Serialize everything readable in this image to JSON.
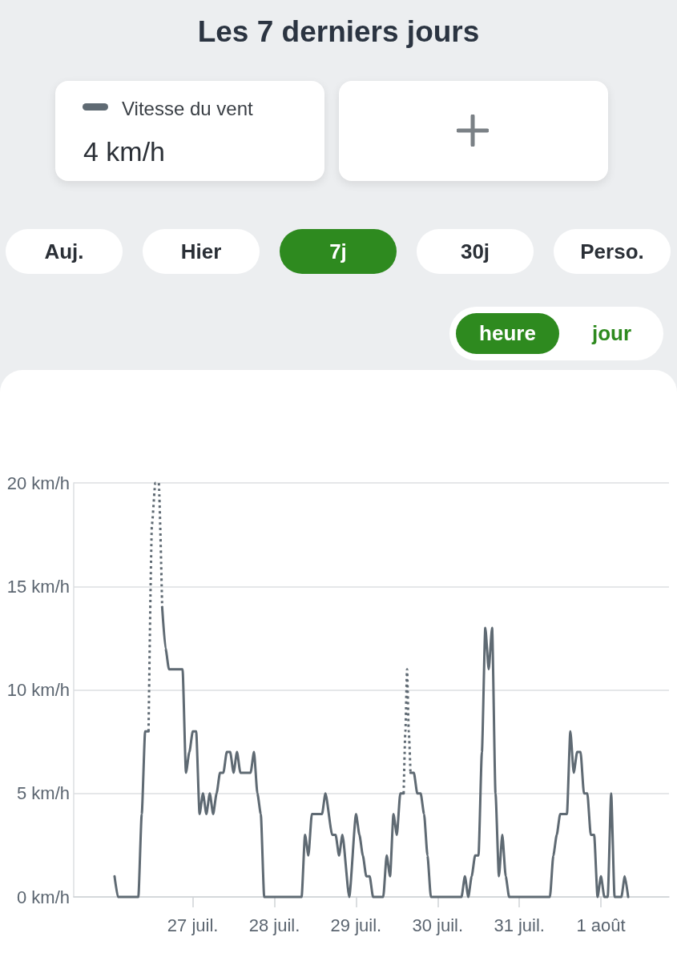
{
  "chart_data": {
    "type": "line",
    "title": "Les 7 derniers jours",
    "annotations": [
      "4 km/h",
      "Auj.",
      "Hier",
      "7j",
      "30j",
      "Perso.",
      "heure",
      "jour"
    ],
    "series": [
      {
        "name": "Vitesse du vent",
        "color": "#5f6a73",
        "x": [
          "--07-26T01:00",
          "--07-26T02:00",
          "--07-26T08:00",
          "--07-26T09:00",
          "--07-26T10:00",
          "--07-26T11:00",
          "--07-26T13:00",
          "--07-26T15:00",
          "--07-26T16:00",
          "--07-26T17:00",
          "--07-26T21:00",
          "--07-26T22:00",
          "--07-26T23:00",
          "--07-27T00:00",
          "--07-27T01:00",
          "--07-27T02:00",
          "--07-27T03:00",
          "--07-27T04:00",
          "--07-27T05:00",
          "--07-27T06:00",
          "--07-27T07:00",
          "--07-27T08:00",
          "--07-27T09:00",
          "--07-27T10:00",
          "--07-27T11:00",
          "--07-27T12:00",
          "--07-27T13:00",
          "--07-27T14:00",
          "--07-27T17:00",
          "--07-27T18:00",
          "--07-27T19:00",
          "--07-27T20:00",
          "--07-27T21:00",
          "--07-28T08:00",
          "--07-28T09:00",
          "--07-28T10:00",
          "--07-28T11:00",
          "--07-28T14:00",
          "--07-28T15:00",
          "--07-28T17:00",
          "--07-28T18:00",
          "--07-28T19:00",
          "--07-28T20:00",
          "--07-28T22:00",
          "--07-29T00:00",
          "--07-29T01:00",
          "--07-29T02:00",
          "--07-29T03:00",
          "--07-29T04:00",
          "--07-29T05:00",
          "--07-29T08:00",
          "--07-29T09:00",
          "--07-29T10:00",
          "--07-29T11:00",
          "--07-29T12:00",
          "--07-29T13:00",
          "--07-29T14:00",
          "--07-29T15:00",
          "--07-29T16:00",
          "--07-29T17:00",
          "--07-29T18:00",
          "--07-29T19:00",
          "--07-29T20:00",
          "--07-29T21:00",
          "--07-29T22:00",
          "--07-30T07:00",
          "--07-30T08:00",
          "--07-30T09:00",
          "--07-30T10:00",
          "--07-30T11:00",
          "--07-30T12:00",
          "--07-30T13:00",
          "--07-30T14:00",
          "--07-30T15:00",
          "--07-30T16:00",
          "--07-30T17:00",
          "--07-30T18:00",
          "--07-30T19:00",
          "--07-30T20:00",
          "--07-30T21:00",
          "--07-31T09:00",
          "--07-31T10:00",
          "--07-31T11:00",
          "--07-31T12:00",
          "--07-31T13:00",
          "--07-31T14:00",
          "--07-31T15:00",
          "--07-31T16:00",
          "--07-31T17:00",
          "--07-31T18:00",
          "--07-31T19:00",
          "--07-31T20:00",
          "--07-31T21:00",
          "--07-31T22:00",
          "--07-31T23:00",
          "--08-01T00:00",
          "--08-01T01:00",
          "--08-01T02:00",
          "--08-01T03:00",
          "--08-01T04:00",
          "--08-01T06:00",
          "--08-01T07:00",
          "--08-01T08:00"
        ],
        "values": [
          1,
          0,
          0,
          4,
          8,
          8,
          null,
          14,
          12,
          11,
          11,
          6,
          7,
          8,
          8,
          4,
          5,
          4,
          5,
          4,
          5,
          6,
          6,
          7,
          7,
          6,
          7,
          6,
          6,
          7,
          5,
          4,
          0,
          0,
          3,
          2,
          4,
          4,
          5,
          3,
          3,
          2,
          3,
          0,
          4,
          3,
          2,
          1,
          1,
          0,
          0,
          2,
          1,
          4,
          3,
          5,
          5,
          null,
          6,
          6,
          5,
          5,
          4,
          2,
          0,
          0,
          1,
          0,
          1,
          2,
          2,
          7,
          13,
          11,
          13,
          5,
          1,
          3,
          1,
          0,
          0,
          2,
          3,
          4,
          4,
          4,
          8,
          6,
          7,
          7,
          5,
          5,
          3,
          3,
          0,
          1,
          0,
          0,
          5,
          0,
          0,
          1,
          0
        ]
      },
      {
        "color": "#5f6a73",
        "line_style": "dotted",
        "x": [
          "--07-26T11:00",
          "--07-26T12:00",
          "--07-26T13:00",
          "--07-26T14:00",
          "--07-26T15:00",
          "--07-28T00:00",
          "--07-29T14:00",
          "--07-29T14:30",
          "--07-29T15:00",
          "--07-29T15:30",
          "--07-29T16:00"
        ],
        "values": [
          8,
          18,
          20,
          20,
          14,
          null,
          5,
          8,
          11,
          8,
          6
        ]
      }
    ],
    "xlim": [
      "--07-25T13:00",
      "--08-01T20:00"
    ],
    "xticks": [
      {
        "value": "--07-27",
        "label": "27 juil."
      },
      {
        "value": "--07-28",
        "label": "28 juil."
      },
      {
        "value": "--07-29",
        "label": "29 juil."
      },
      {
        "value": "--07-30",
        "label": "30 juil."
      },
      {
        "value": "--07-31",
        "label": "31 juil."
      },
      {
        "value": "--08-01",
        "label": "1 août"
      }
    ],
    "ylim": [
      0,
      20
    ],
    "yticks": [
      {
        "value": 0,
        "label": "0 km/h"
      },
      {
        "value": 5,
        "label": "5 km/h"
      },
      {
        "value": 10,
        "label": "10 km/h"
      },
      {
        "value": 15,
        "label": "15 km/h"
      },
      {
        "value": 20,
        "label": "20 km/h"
      }
    ],
    "grid": "y",
    "legend": "top left",
    "marker": "none",
    "line_style": "solid"
  }
}
